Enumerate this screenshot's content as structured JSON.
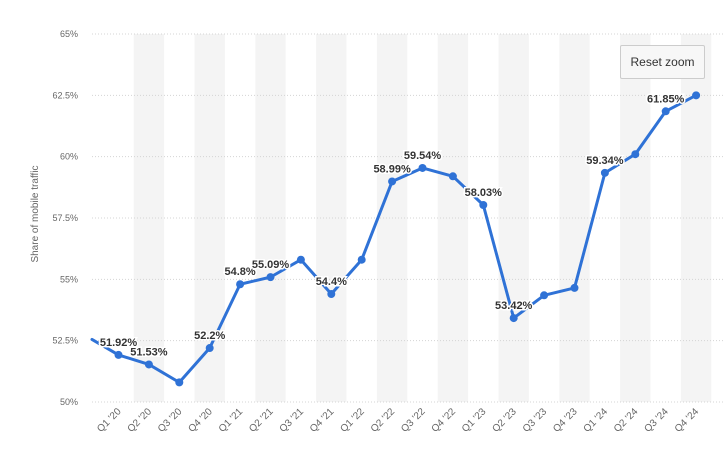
{
  "colors": {
    "line": "#2f72d6",
    "band": "#f4f4f4",
    "grid": "#d4d4d4",
    "axis_text": "#666666",
    "data_label": "#333333"
  },
  "reset_zoom_label": "Reset zoom",
  "chart_data": {
    "type": "line",
    "ylabel": "Share of mobile traffic",
    "xlabel": "",
    "ylim": [
      50,
      65
    ],
    "y_ticks": [
      50,
      52.5,
      55,
      57.5,
      60,
      62.5,
      65
    ],
    "y_tick_labels": [
      "50%",
      "52.5%",
      "55%",
      "57.5%",
      "60%",
      "62.5%",
      "65%"
    ],
    "grid": true,
    "categories": [
      "Q1 '20",
      "Q2 '20",
      "Q3 '20",
      "Q4 '20",
      "Q1 '21",
      "Q2 '21",
      "Q3 '21",
      "Q4 '21",
      "Q1 '22",
      "Q2 '22",
      "Q3 '22",
      "Q4 '22",
      "Q1 '23",
      "Q2 '23",
      "Q3 '23",
      "Q4 '23",
      "Q1 '24",
      "Q2 '24",
      "Q3 '24",
      "Q4 '24"
    ],
    "values": [
      51.92,
      51.53,
      50.8,
      52.2,
      54.8,
      55.09,
      55.8,
      54.4,
      55.8,
      58.99,
      59.54,
      59.2,
      58.03,
      53.42,
      54.35,
      54.65,
      59.34,
      60.1,
      61.85,
      62.5
    ],
    "data_labels": [
      "51.92%",
      "51.53%",
      "",
      "52.2%",
      "54.8%",
      "55.09%",
      "",
      "54.4%",
      "",
      "58.99%",
      "59.54%",
      "",
      "58.03%",
      "53.42%",
      "",
      "",
      "59.34%",
      "",
      "61.85%",
      ""
    ],
    "partial_start_value": 52.55
  }
}
